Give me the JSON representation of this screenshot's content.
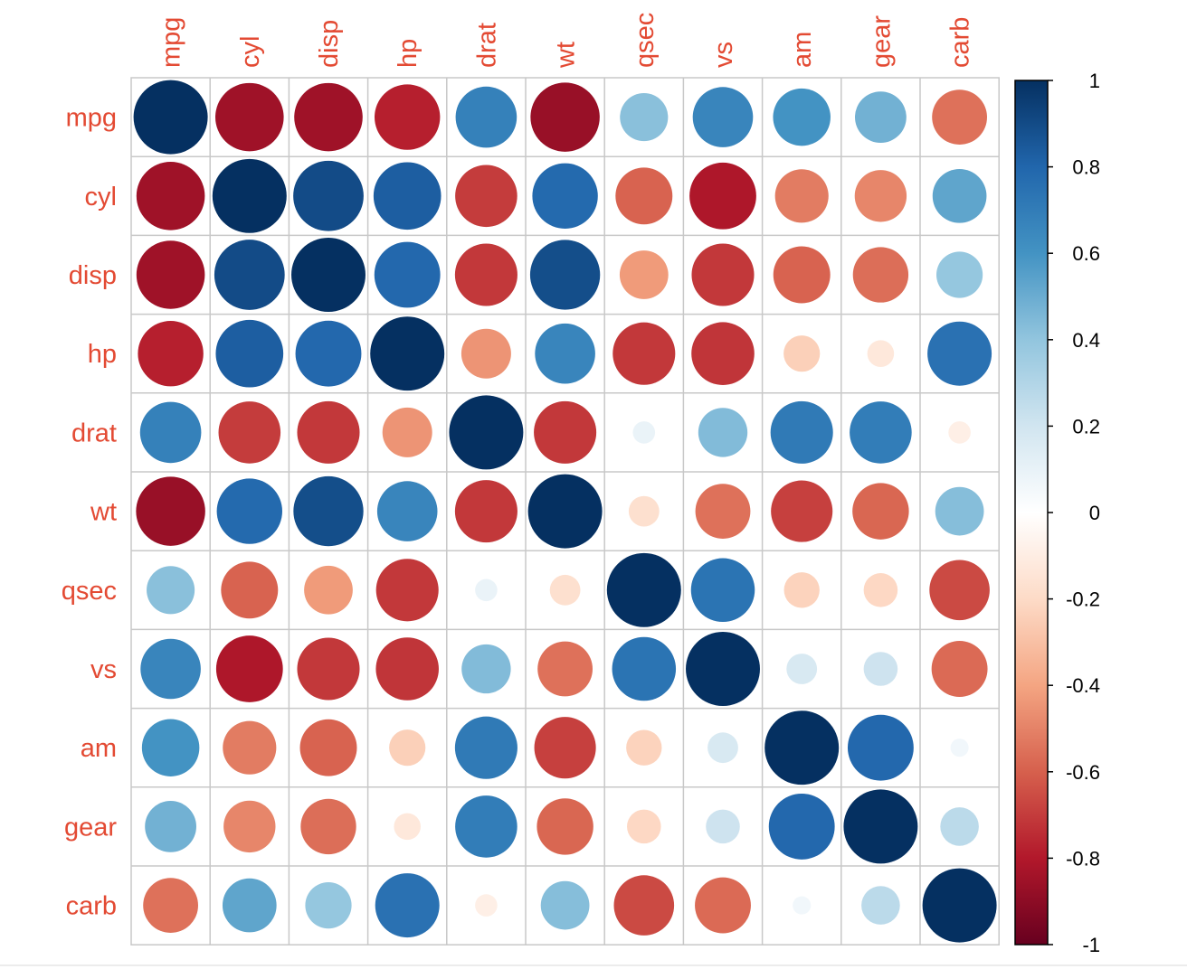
{
  "chart_data": {
    "type": "heatmap",
    "glyph": "circle",
    "variables": [
      "mpg",
      "cyl",
      "disp",
      "hp",
      "drat",
      "wt",
      "qsec",
      "vs",
      "am",
      "gear",
      "carb"
    ],
    "matrix": [
      [
        1.0,
        -0.85,
        -0.85,
        -0.78,
        0.68,
        -0.87,
        0.42,
        0.66,
        0.6,
        0.48,
        -0.55
      ],
      [
        -0.85,
        1.0,
        0.9,
        0.83,
        -0.7,
        0.78,
        -0.59,
        -0.81,
        -0.52,
        -0.49,
        0.53
      ],
      [
        -0.85,
        0.9,
        1.0,
        0.79,
        -0.71,
        0.89,
        -0.43,
        -0.71,
        -0.59,
        -0.56,
        0.39
      ],
      [
        -0.78,
        0.83,
        0.79,
        1.0,
        -0.45,
        0.66,
        -0.71,
        -0.72,
        -0.24,
        -0.13,
        0.75
      ],
      [
        0.68,
        -0.7,
        -0.71,
        -0.45,
        1.0,
        -0.71,
        0.09,
        0.44,
        0.71,
        0.7,
        -0.09
      ],
      [
        -0.87,
        0.78,
        0.89,
        0.66,
        -0.71,
        1.0,
        -0.17,
        -0.55,
        -0.69,
        -0.58,
        0.43
      ],
      [
        0.42,
        -0.59,
        -0.43,
        -0.71,
        0.09,
        -0.17,
        1.0,
        0.74,
        -0.23,
        -0.21,
        -0.66
      ],
      [
        0.66,
        -0.81,
        -0.71,
        -0.72,
        0.44,
        -0.55,
        0.74,
        1.0,
        0.17,
        0.21,
        -0.57
      ],
      [
        0.6,
        -0.52,
        -0.59,
        -0.24,
        0.71,
        -0.69,
        -0.23,
        0.17,
        1.0,
        0.79,
        0.06
      ],
      [
        0.48,
        -0.49,
        -0.56,
        -0.13,
        0.7,
        -0.58,
        -0.21,
        0.21,
        0.79,
        1.0,
        0.27
      ],
      [
        -0.55,
        0.53,
        0.39,
        0.75,
        -0.09,
        0.43,
        -0.66,
        -0.57,
        0.06,
        0.27,
        1.0
      ]
    ],
    "colorbar": {
      "range": [
        -1,
        1
      ],
      "ticks": [
        "1",
        "0.8",
        "0.6",
        "0.4",
        "0.2",
        "0",
        "-0.2",
        "-0.4",
        "-0.6",
        "-0.8",
        "-1"
      ],
      "tick_values": [
        1,
        0.8,
        0.6,
        0.4,
        0.2,
        0,
        -0.2,
        -0.4,
        -0.6,
        -0.8,
        -1
      ],
      "palette": [
        "#67001F",
        "#B2182B",
        "#D6604D",
        "#F4A582",
        "#FDDBC7",
        "#FFFFFF",
        "#D1E5F0",
        "#92C5DE",
        "#4393C3",
        "#2166AC",
        "#053061"
      ]
    },
    "label_color": "#E34A33",
    "grid_color": "#C8C8C8",
    "title": "",
    "xlabel": "",
    "ylabel": ""
  }
}
